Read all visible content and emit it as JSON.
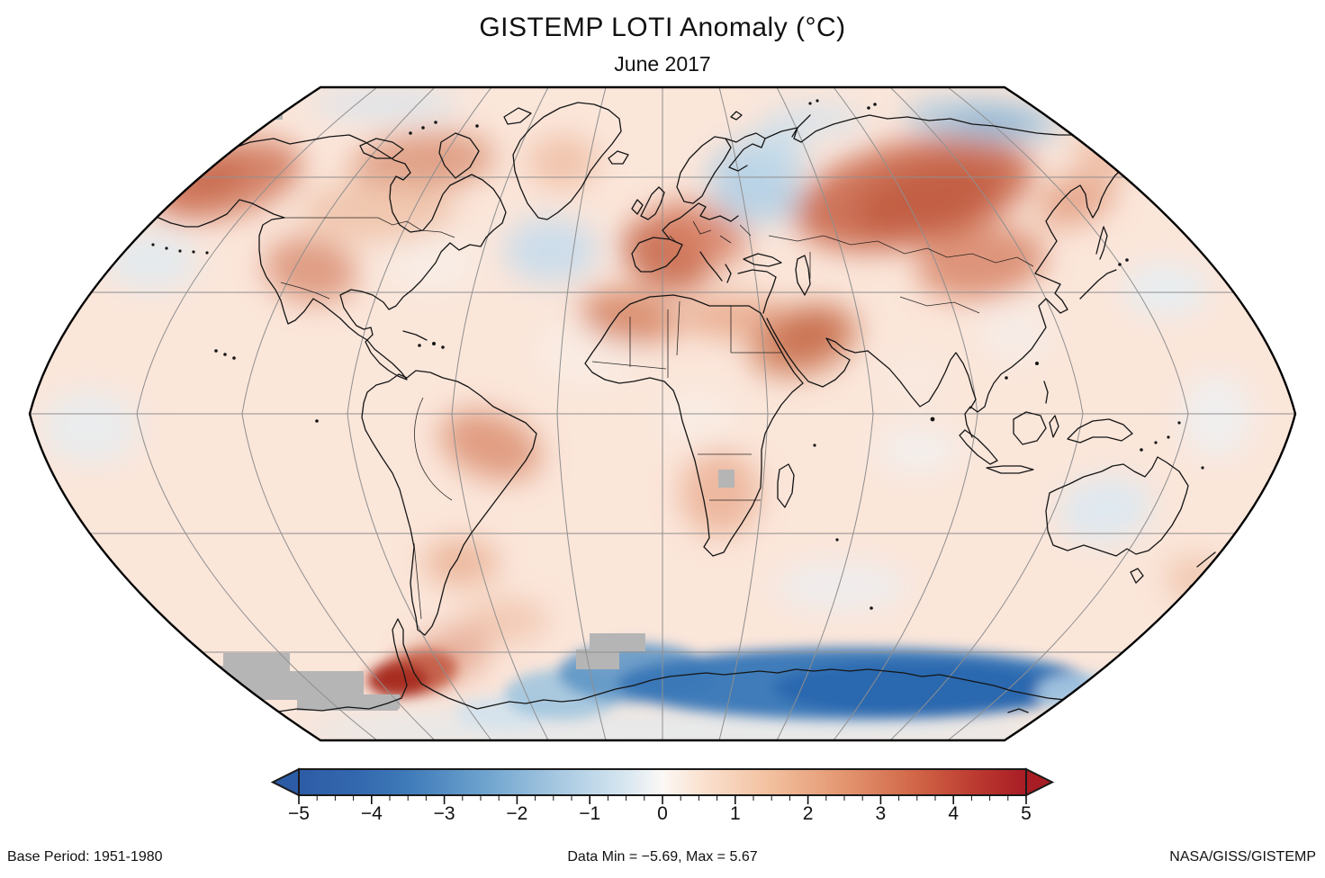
{
  "title": "GISTEMP LOTI Anomaly (°C)",
  "subtitle": "June 2017",
  "footer": {
    "base_period": "Base Period: 1951-1980",
    "data_range": "Data Min = −5.69, Max = 5.67",
    "credit": "NASA/GISS/GISTEMP"
  },
  "colorbar": {
    "min": -5,
    "max": 5,
    "major_step": 1,
    "minor_step": 0.25,
    "ticks": [
      "−5",
      "−4",
      "−3",
      "−2",
      "−1",
      "0",
      "1",
      "2",
      "3",
      "4",
      "5"
    ],
    "colors": {
      "cold_end": "#2d5ca6",
      "zero": "#fbf8f5",
      "warm_end": "#a81c24",
      "no_data_gray": "#b5b5b5",
      "ocean_base": "#fbe6da"
    }
  },
  "chart_data": {
    "type": "heatmap",
    "title": "GISTEMP LOTI Anomaly (°C)",
    "subtitle": "June 2017",
    "units": "°C anomaly vs 1951-1980 base period",
    "projection": "Robinson-style global map with 30° graticule",
    "colorbar_range": [
      -5,
      5
    ],
    "colorbar_tick_labels": [
      -5,
      -4,
      -3,
      -2,
      -1,
      0,
      1,
      2,
      3,
      4,
      5
    ],
    "data_min": -5.69,
    "data_max": 5.67,
    "legend_position": "bottom",
    "regions": [
      {
        "region": "Alaska / northwest Canada",
        "anomaly_c": 2.0
      },
      {
        "region": "Canadian Arctic Archipelago",
        "anomaly_c": 1.5
      },
      {
        "region": "Southwestern United States",
        "anomaly_c": 1.5
      },
      {
        "region": "Eastern United States",
        "anomaly_c": 0.2
      },
      {
        "region": "North Atlantic south of Greenland",
        "anomaly_c": -0.7
      },
      {
        "region": "Western and Central Europe",
        "anomaly_c": 2.5
      },
      {
        "region": "Northwest Russia / Barents-Kara seas",
        "anomaly_c": -1.2
      },
      {
        "region": "Central Siberia / Mongolia",
        "anomaly_c": 3.0
      },
      {
        "region": "East Siberian Arctic coast",
        "anomaly_c": -1.5
      },
      {
        "region": "Middle East / Arabian Peninsula",
        "anomaly_c": 2.0
      },
      {
        "region": "North Africa (Sahara, Mediterranean rim)",
        "anomaly_c": 1.5
      },
      {
        "region": "Eastern Brazil",
        "anomaly_c": 1.5
      },
      {
        "region": "Southern Africa",
        "anomaly_c": 1.0
      },
      {
        "region": "Central Australia",
        "anomaly_c": -0.5
      },
      {
        "region": "Antarctic Peninsula area",
        "anomaly_c": 4.5
      },
      {
        "region": "East Antarctica coastal band",
        "anomaly_c": -4.5
      },
      {
        "region": "West Antarctica",
        "anomaly_c": null,
        "note": "no data (gray)"
      },
      {
        "region": "Tropical oceans background",
        "anomaly_c": 0.3
      }
    ]
  }
}
